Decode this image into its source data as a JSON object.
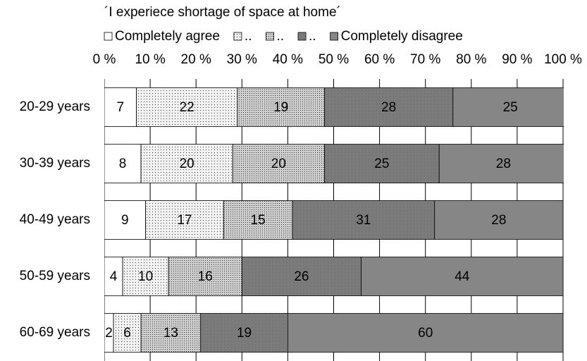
{
  "chart_data": {
    "type": "bar",
    "orientation": "horizontal",
    "stacked": true,
    "title": "´I experiece shortage of space at home´",
    "categories": [
      "20-29 years",
      "30-39 years",
      "40-49 years",
      "50-59 years",
      "60-69 years"
    ],
    "series": [
      {
        "name": "Completely agree",
        "color": "#ffffff",
        "values": [
          7,
          8,
          9,
          4,
          2
        ]
      },
      {
        "name": "..",
        "color": "#f2f2f2",
        "values": [
          22,
          20,
          17,
          10,
          6
        ]
      },
      {
        "name": "..",
        "color": "#cfcfcf",
        "values": [
          19,
          20,
          15,
          16,
          13
        ]
      },
      {
        "name": "..",
        "color": "#b0b0b0",
        "values": [
          28,
          25,
          31,
          26,
          19
        ]
      },
      {
        "name": "Completely disagree",
        "color": "#868686",
        "values": [
          25,
          28,
          28,
          44,
          60
        ]
      }
    ],
    "xlim": [
      0,
      100
    ],
    "xticks": [
      {
        "value": 0,
        "label": "0 %"
      },
      {
        "value": 10,
        "label": "10 %"
      },
      {
        "value": 20,
        "label": "20 %"
      },
      {
        "value": 30,
        "label": "30 %"
      },
      {
        "value": 40,
        "label": "40 %"
      },
      {
        "value": 50,
        "label": "50 %"
      },
      {
        "value": 60,
        "label": "60 %"
      },
      {
        "value": 70,
        "label": "70 %"
      },
      {
        "value": 80,
        "label": "80 %"
      },
      {
        "value": 90,
        "label": "90 %"
      },
      {
        "value": 100,
        "label": "100 %"
      }
    ],
    "grid": true,
    "legend": "top"
  }
}
